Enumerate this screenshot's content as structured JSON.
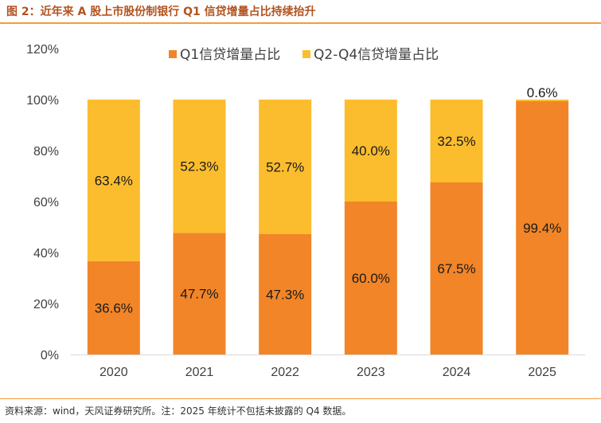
{
  "header": {
    "title": "图 2：近年来 A 股上市股份制银行 Q1 信贷增量占比持续抬升"
  },
  "footer": {
    "source": "资料来源：wind，天风证券研究所。注：2025 年统计不包括未披露的 Q4 数据。"
  },
  "colors": {
    "q1": "#f28527",
    "q2q4": "#fbbd2e",
    "accent": "#b2531f",
    "rule": "#f39c3a"
  },
  "chart_data": {
    "type": "bar",
    "stacked": true,
    "categories": [
      "2020",
      "2021",
      "2022",
      "2023",
      "2024",
      "2025"
    ],
    "series": [
      {
        "name": "Q1信贷增量占比",
        "values": [
          36.6,
          47.7,
          47.3,
          60.0,
          67.5,
          99.4
        ],
        "labels": [
          "36.6%",
          "47.7%",
          "47.3%",
          "60.0%",
          "67.5%",
          "99.4%"
        ]
      },
      {
        "name": "Q2-Q4信贷增量占比",
        "values": [
          63.4,
          52.3,
          52.7,
          40.0,
          32.5,
          0.6
        ],
        "labels": [
          "63.4%",
          "52.3%",
          "52.7%",
          "40.0%",
          "32.5%",
          "0.6%"
        ]
      }
    ],
    "ylim": [
      0,
      120
    ],
    "yticks": [
      "0%",
      "20%",
      "40%",
      "60%",
      "80%",
      "100%",
      "120%"
    ],
    "legend_position": "top-center",
    "grid": false
  }
}
